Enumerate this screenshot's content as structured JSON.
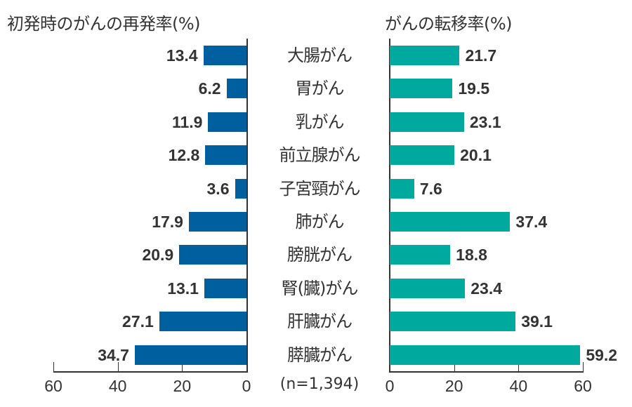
{
  "titles": {
    "left": "初発時のがんの再発率(%)",
    "right": "がんの転移率(%)"
  },
  "note": "(n=1,394)",
  "colors": {
    "recurrence_bar": "#00609f",
    "metastasis_bar": "#00a99d",
    "text": "#333333"
  },
  "categories": [
    "大腸がん",
    "胃がん",
    "乳がん",
    "前立腺がん",
    "子宮頸がん",
    "肺がん",
    "膀胱がん",
    "腎(臓)がん",
    "肝臓がん",
    "膵臓がん"
  ],
  "recurrence": [
    "13.4",
    "6.2",
    "11.9",
    "12.8",
    "3.6",
    "17.9",
    "20.9",
    "13.1",
    "27.1",
    "34.7"
  ],
  "metastasis": [
    "21.7",
    "19.5",
    "23.1",
    "20.1",
    "7.6",
    "37.4",
    "18.8",
    "23.4",
    "39.1",
    "59.2"
  ],
  "left_axis_ticks": [
    "60",
    "40",
    "20",
    "0"
  ],
  "right_axis_ticks": [
    "0",
    "20",
    "40",
    "60"
  ],
  "chart_data": [
    {
      "type": "bar",
      "orientation": "horizontal",
      "title": "初発時のがんの再発率(%)",
      "categories": [
        "大腸がん",
        "胃がん",
        "乳がん",
        "前立腺がん",
        "子宮頸がん",
        "肺がん",
        "膀胱がん",
        "腎(臓)がん",
        "肝臓がん",
        "膵臓がん"
      ],
      "values": [
        13.4,
        6.2,
        11.9,
        12.8,
        3.6,
        17.9,
        20.9,
        13.1,
        27.1,
        34.7
      ],
      "xlabel": "",
      "ylabel": "",
      "xlim": [
        0,
        60
      ],
      "xticks": [
        60,
        40,
        20,
        0
      ],
      "direction": "right-to-left",
      "color": "#00609f",
      "grid": false,
      "legend": null
    },
    {
      "type": "bar",
      "orientation": "horizontal",
      "title": "がんの転移率(%)",
      "categories": [
        "大腸がん",
        "胃がん",
        "乳がん",
        "前立腺がん",
        "子宮頸がん",
        "肺がん",
        "膀胱がん",
        "腎(臓)がん",
        "肝臓がん",
        "膵臓がん"
      ],
      "values": [
        21.7,
        19.5,
        23.1,
        20.1,
        7.6,
        37.4,
        18.8,
        23.4,
        39.1,
        59.2
      ],
      "xlabel": "",
      "ylabel": "",
      "xlim": [
        0,
        60
      ],
      "xticks": [
        0,
        20,
        40,
        60
      ],
      "direction": "left-to-right",
      "color": "#00a99d",
      "grid": false,
      "legend": null,
      "annotation": "(n=1,394)"
    }
  ]
}
